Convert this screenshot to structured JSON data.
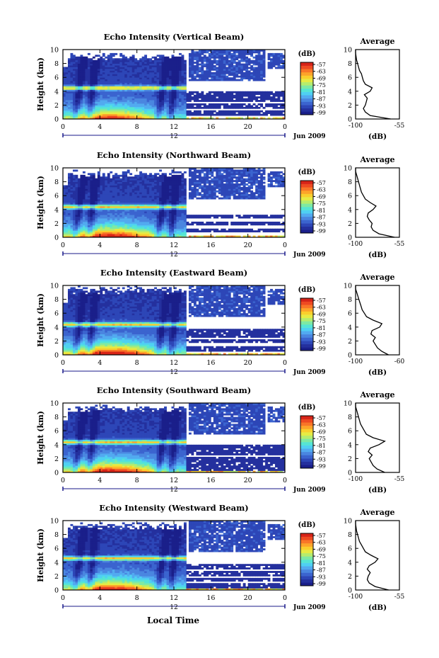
{
  "colors": {
    "colorbar": [
      "#1a1f8a",
      "#24309e",
      "#2d46b7",
      "#3b64cf",
      "#4a86e0",
      "#52aaf0",
      "#4fd0f2",
      "#55e5d4",
      "#7ee9a4",
      "#b5ec6e",
      "#e6eb44",
      "#f9cf2d",
      "#fda42a",
      "#f97628",
      "#ee4a22",
      "#d72418"
    ],
    "trace": "#000000",
    "axis_tick_color": "#1a1a8a"
  },
  "xlabel": "Local Time",
  "chart_data": [
    {
      "type": "heatmap",
      "title": "Echo Intensity (Vertical Beam)",
      "ylabel": "Height (km)",
      "y_ticks": [
        "0",
        "2",
        "4",
        "6",
        "8",
        "10"
      ],
      "ylim": [
        0,
        10
      ],
      "x_ticks": [
        "0",
        "4",
        "8",
        "12",
        "16",
        "20",
        "0"
      ],
      "xlim": [
        0,
        24
      ],
      "sub_tick": "12",
      "date_label": "Jun 2009",
      "colorbar": {
        "unit": "(dB)",
        "ticks": [
          "-57",
          "-63",
          "-69",
          "-75",
          "-81",
          "-87",
          "-93",
          "-99"
        ]
      },
      "profile": {
        "title": "Average",
        "xlabel": "(dB)",
        "x_ticks": [
          "-100",
          "-55"
        ],
        "y_ticks": [
          "0",
          "2",
          "4",
          "6",
          "8",
          "10"
        ],
        "xlim": [
          -100,
          -55
        ],
        "points": [
          [
            -64,
            0
          ],
          [
            -85,
            0.5
          ],
          [
            -90,
            1
          ],
          [
            -92,
            1.5
          ],
          [
            -90,
            2
          ],
          [
            -89,
            2.5
          ],
          [
            -88,
            3
          ],
          [
            -91,
            3.5
          ],
          [
            -85,
            4
          ],
          [
            -83,
            4.5
          ],
          [
            -90,
            5
          ],
          [
            -92,
            5.5
          ],
          [
            -93,
            6
          ],
          [
            -94,
            6.5
          ],
          [
            -96,
            7
          ],
          [
            -97,
            7.5
          ],
          [
            -98,
            8
          ],
          [
            -99,
            8.5
          ],
          [
            -99.5,
            9
          ],
          [
            -100,
            9.5
          ],
          [
            -100,
            10
          ]
        ]
      },
      "features": {
        "surface_peak": 0.32,
        "band_km": 4.5,
        "upper_top": 9.0,
        "bars_x": [
          1.5,
          3.0,
          10.5,
          11.8
        ],
        "cut_hour": 13.3,
        "late_layers_km": [
          0.8,
          1.8,
          2.8,
          3.6
        ]
      }
    },
    {
      "type": "heatmap",
      "title": "Echo Intensity (Northward Beam)",
      "ylabel": "Height (km)",
      "y_ticks": [
        "0",
        "2",
        "4",
        "6",
        "8",
        "10"
      ],
      "ylim": [
        0,
        10
      ],
      "x_ticks": [
        "0",
        "4",
        "8",
        "12",
        "16",
        "20",
        "0"
      ],
      "xlim": [
        0,
        24
      ],
      "sub_tick": "12",
      "date_label": "Jun 2009",
      "colorbar": {
        "unit": "(dB)",
        "ticks": [
          "-57",
          "-63",
          "-69",
          "-75",
          "-81",
          "-87",
          "-93",
          "-99"
        ]
      },
      "profile": {
        "title": "Average",
        "xlabel": "(dB)",
        "x_ticks": [
          "-100",
          "-55"
        ],
        "y_ticks": [
          "0",
          "2",
          "4",
          "6",
          "8",
          "10"
        ],
        "xlim": [
          -100,
          -55
        ],
        "points": [
          [
            -60,
            0
          ],
          [
            -76,
            0.5
          ],
          [
            -82,
            1
          ],
          [
            -84,
            1.5
          ],
          [
            -83,
            2
          ],
          [
            -86,
            2.5
          ],
          [
            -88,
            3
          ],
          [
            -87,
            3.5
          ],
          [
            -82,
            4
          ],
          [
            -79,
            4.5
          ],
          [
            -85,
            5
          ],
          [
            -90,
            5.5
          ],
          [
            -92,
            6
          ],
          [
            -94,
            6.5
          ],
          [
            -95,
            7
          ],
          [
            -96,
            7.5
          ],
          [
            -97,
            8
          ],
          [
            -98,
            8.5
          ],
          [
            -99,
            9
          ],
          [
            -100,
            9.5
          ],
          [
            -100,
            10
          ]
        ]
      },
      "features": {
        "surface_peak": 0.42,
        "band_km": 4.4,
        "upper_top": 9.1,
        "bars_x": [
          1.5,
          3.0,
          10.5,
          11.8
        ],
        "cut_hour": 13.3,
        "late_layers_km": [
          1.0,
          2.0,
          3.0
        ]
      }
    },
    {
      "type": "heatmap",
      "title": "Echo Intensity (Eastward Beam)",
      "ylabel": "Height (km)",
      "y_ticks": [
        "0",
        "2",
        "4",
        "6",
        "8",
        "10"
      ],
      "ylim": [
        0,
        10
      ],
      "x_ticks": [
        "0",
        "4",
        "8",
        "12",
        "16",
        "20",
        "0"
      ],
      "xlim": [
        0,
        24
      ],
      "sub_tick": "12",
      "date_label": "Jun 2009",
      "colorbar": {
        "unit": "(dB)",
        "ticks": [
          "-57",
          "-63",
          "-69",
          "-75",
          "-81",
          "-87",
          "-93",
          "-99"
        ]
      },
      "profile": {
        "title": "Average",
        "xlabel": "(dB)",
        "x_ticks": [
          "-100",
          "-60"
        ],
        "y_ticks": [
          "0",
          "2",
          "4",
          "6",
          "8",
          "10"
        ],
        "xlim": [
          -100,
          -60
        ],
        "points": [
          [
            -70,
            0
          ],
          [
            -76,
            0.5
          ],
          [
            -80,
            1
          ],
          [
            -82,
            1.5
          ],
          [
            -84,
            2
          ],
          [
            -82,
            2.5
          ],
          [
            -86,
            3
          ],
          [
            -85,
            3.5
          ],
          [
            -78,
            4
          ],
          [
            -76,
            4.5
          ],
          [
            -84,
            5
          ],
          [
            -90,
            5.5
          ],
          [
            -92,
            6
          ],
          [
            -94,
            6.5
          ],
          [
            -95,
            7
          ],
          [
            -96,
            7.5
          ],
          [
            -97,
            8
          ],
          [
            -98,
            8.5
          ],
          [
            -99,
            9
          ],
          [
            -100,
            9.5
          ],
          [
            -100,
            10
          ]
        ]
      },
      "features": {
        "surface_peak": 0.48,
        "band_km": 4.4,
        "upper_top": 9.4,
        "bars_x": [
          1.5,
          3.0,
          10.5,
          11.8
        ],
        "cut_hour": 13.3,
        "late_layers_km": [
          0.9,
          2.0,
          2.8,
          3.5
        ]
      }
    },
    {
      "type": "heatmap",
      "title": "Echo Intensity (Southward Beam)",
      "ylabel": "Height (km)",
      "y_ticks": [
        "0",
        "2",
        "4",
        "6",
        "8",
        "10"
      ],
      "ylim": [
        0,
        10
      ],
      "x_ticks": [
        "0",
        "4",
        "8",
        "12",
        "16",
        "20",
        "0"
      ],
      "xlim": [
        0,
        24
      ],
      "sub_tick": "12",
      "date_label": "Jun 2009",
      "colorbar": {
        "unit": "(dB)",
        "ticks": [
          "-57",
          "-63",
          "-69",
          "-75",
          "-81",
          "-87",
          "-93",
          "-99"
        ]
      },
      "profile": {
        "title": "Average",
        "xlabel": "(dB)",
        "x_ticks": [
          "-100",
          "-55"
        ],
        "y_ticks": [
          "0",
          "2",
          "4",
          "6",
          "8",
          "10"
        ],
        "xlim": [
          -100,
          -55
        ],
        "points": [
          [
            -70,
            0
          ],
          [
            -78,
            0.5
          ],
          [
            -82,
            1
          ],
          [
            -84,
            1.5
          ],
          [
            -86,
            2
          ],
          [
            -83,
            2.5
          ],
          [
            -87,
            3
          ],
          [
            -85,
            3.5
          ],
          [
            -76,
            4
          ],
          [
            -70,
            4.5
          ],
          [
            -82,
            5
          ],
          [
            -89,
            5.5
          ],
          [
            -91,
            6
          ],
          [
            -93,
            6.5
          ],
          [
            -95,
            7
          ],
          [
            -96,
            7.5
          ],
          [
            -97,
            8
          ],
          [
            -98,
            8.5
          ],
          [
            -99,
            9
          ],
          [
            -100,
            9.5
          ],
          [
            -100,
            10
          ]
        ]
      },
      "features": {
        "surface_peak": 0.42,
        "band_km": 4.4,
        "upper_top": 9.2,
        "bars_x": [
          1.5,
          3.0,
          10.5,
          11.8
        ],
        "cut_hour": 13.3,
        "late_layers_km": [
          0.6,
          1.4,
          2.0,
          2.8,
          3.6
        ]
      }
    },
    {
      "type": "heatmap",
      "title": "Echo Intensity (Westward Beam)",
      "ylabel": "Height (km)",
      "y_ticks": [
        "0",
        "2",
        "4",
        "6",
        "8",
        "10"
      ],
      "ylim": [
        0,
        10
      ],
      "x_ticks": [
        "0",
        "4",
        "8",
        "12",
        "16",
        "20",
        "0"
      ],
      "xlim": [
        0,
        24
      ],
      "sub_tick": "12",
      "date_label": "Jun 2009",
      "colorbar": {
        "unit": "(dB)",
        "ticks": [
          "-57",
          "-63",
          "-69",
          "-75",
          "-81",
          "-87",
          "-93",
          "-99"
        ]
      },
      "profile": {
        "title": "Average",
        "xlabel": "(dB)",
        "x_ticks": [
          "-100",
          "-55"
        ],
        "y_ticks": [
          "0",
          "2",
          "4",
          "6",
          "8",
          "10"
        ],
        "xlim": [
          -100,
          -55
        ],
        "points": [
          [
            -66,
            0
          ],
          [
            -80,
            0.5
          ],
          [
            -86,
            1
          ],
          [
            -88,
            1.5
          ],
          [
            -87,
            2
          ],
          [
            -85,
            2.5
          ],
          [
            -88,
            3
          ],
          [
            -86,
            3.5
          ],
          [
            -80,
            4
          ],
          [
            -77,
            4.5
          ],
          [
            -84,
            5
          ],
          [
            -90,
            5.5
          ],
          [
            -92,
            6
          ],
          [
            -94,
            6.5
          ],
          [
            -96,
            7
          ],
          [
            -97,
            7.5
          ],
          [
            -98,
            8
          ],
          [
            -99,
            8.5
          ],
          [
            -99.5,
            9
          ],
          [
            -100,
            9.5
          ],
          [
            -100,
            10
          ]
        ]
      },
      "features": {
        "surface_peak": 0.36,
        "band_km": 4.6,
        "upper_top": 9.2,
        "bars_x": [
          1.5,
          3.0,
          10.5,
          11.8
        ],
        "cut_hour": 13.3,
        "late_layers_km": [
          0.6,
          1.5,
          2.4,
          3.3
        ]
      }
    }
  ]
}
